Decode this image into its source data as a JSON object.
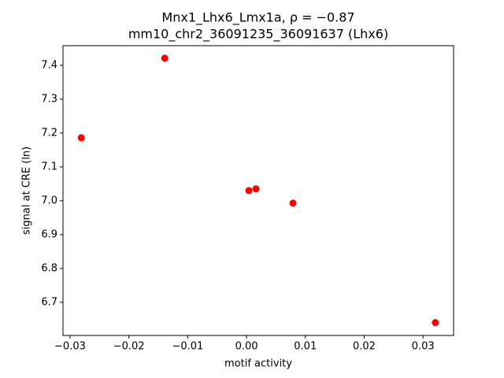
{
  "chart_data": {
    "type": "scatter",
    "title": "Mnx1_Lhx6_Lmx1a, ρ = −0.87",
    "subtitle": "mm10_chr2_36091235_36091637 (Lhx6)",
    "x_label": "motif activity",
    "y_label": "signal at CRE (ln)",
    "series": [
      {
        "color": "#ff0000",
        "x": [
          -0.0281,
          -0.0139,
          0.0004,
          0.0016,
          0.0079,
          0.0321
        ],
        "values": [
          7.186,
          7.421,
          7.03,
          7.035,
          6.993,
          6.64
        ]
      }
    ],
    "xlim": [
      -0.0312,
      0.0352
    ],
    "ylim": [
      6.602,
      7.458
    ],
    "xticks": [
      {
        "value": -0.03,
        "label": "−0.03"
      },
      {
        "value": -0.02,
        "label": "−0.02"
      },
      {
        "value": -0.01,
        "label": "−0.01"
      },
      {
        "value": 0,
        "label": "0.00"
      },
      0.01,
      0.02,
      0.03
    ],
    "yticks": [
      6.7,
      6.8,
      6.9,
      {
        "value": 7,
        "label": "7.0"
      },
      7.1,
      7.2,
      7.3,
      7.4
    ]
  }
}
